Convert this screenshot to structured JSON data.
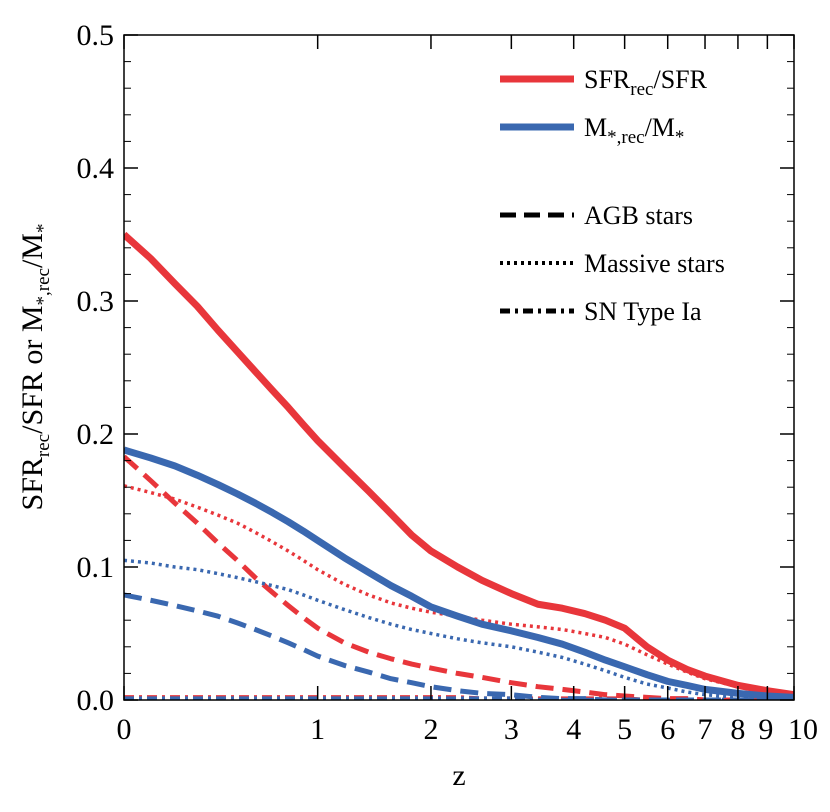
{
  "chart_data": {
    "type": "line",
    "xlabel": "z",
    "ylabel_parts": {
      "a": "SFR",
      "b": "rec",
      "c": "/SFR or M",
      "d": "*,rec",
      "e": "/M",
      "f": "*"
    },
    "xscale": "log(1+z)",
    "xlim": [
      0,
      10
    ],
    "ylim": [
      0,
      0.5
    ],
    "x_ticks": [
      0,
      1,
      2,
      3,
      4,
      5,
      6,
      7,
      8,
      9,
      10
    ],
    "x_tick_labels": [
      "0",
      "1",
      "2",
      "3",
      "4",
      "5",
      "6",
      "7",
      "8",
      "9",
      "10"
    ],
    "y_ticks": [
      0,
      0.1,
      0.2,
      0.3,
      0.4,
      0.5
    ],
    "y_tick_labels": [
      "0.0",
      "0.1",
      "0.2",
      "0.3",
      "0.4",
      "0.5"
    ],
    "colors": {
      "sfr": "#e8363b",
      "mstar": "#3a68b0"
    },
    "legend": {
      "placement": "top-right",
      "sfr": {
        "main": "SFR",
        "sub": "rec",
        "tail": "/SFR"
      },
      "mstar": {
        "m1": "M",
        "s1": "*,rec",
        "m2": "/M",
        "s2": "*"
      },
      "agb": "AGB stars",
      "massive": "Massive stars",
      "sn": "SN Type Ia"
    },
    "x": [
      0,
      0.1,
      0.2,
      0.3,
      0.4,
      0.5,
      0.6,
      0.7,
      0.8,
      0.9,
      1.0,
      1.2,
      1.4,
      1.6,
      1.8,
      2.0,
      2.3,
      2.6,
      3.0,
      3.4,
      3.8,
      4.2,
      4.6,
      5.0,
      5.5,
      6.0,
      6.5,
      7.0,
      8.0,
      9.0,
      10.0
    ],
    "series": [
      {
        "name": "SFR_rec/SFR total",
        "group": "sfr",
        "style": "solid",
        "values": [
          0.35,
          0.332,
          0.313,
          0.296,
          0.278,
          0.262,
          0.247,
          0.233,
          0.22,
          0.207,
          0.195,
          0.175,
          0.157,
          0.14,
          0.124,
          0.112,
          0.1,
          0.09,
          0.08,
          0.072,
          0.069,
          0.065,
          0.06,
          0.054,
          0.04,
          0.03,
          0.023,
          0.018,
          0.011,
          0.007,
          0.004
        ]
      },
      {
        "name": "M*,rec/M* total",
        "group": "mstar",
        "style": "solid",
        "values": [
          0.188,
          0.182,
          0.176,
          0.169,
          0.162,
          0.155,
          0.148,
          0.141,
          0.134,
          0.127,
          0.12,
          0.107,
          0.096,
          0.086,
          0.078,
          0.07,
          0.063,
          0.057,
          0.052,
          0.047,
          0.042,
          0.036,
          0.03,
          0.025,
          0.019,
          0.014,
          0.011,
          0.008,
          0.005,
          0.003,
          0.002
        ]
      },
      {
        "name": "SFR_rec/SFR AGB stars",
        "group": "sfr",
        "style": "dash",
        "values": [
          0.183,
          0.165,
          0.148,
          0.133,
          0.118,
          0.105,
          0.092,
          0.081,
          0.071,
          0.062,
          0.054,
          0.043,
          0.036,
          0.031,
          0.027,
          0.024,
          0.02,
          0.017,
          0.013,
          0.01,
          0.008,
          0.006,
          0.004,
          0.003,
          0.002,
          0.001,
          0.001,
          0.0,
          0.0,
          0.0,
          0.0
        ]
      },
      {
        "name": "SFR_rec/SFR Massive stars",
        "group": "sfr",
        "style": "dot",
        "values": [
          0.161,
          0.156,
          0.151,
          0.145,
          0.139,
          0.133,
          0.126,
          0.119,
          0.112,
          0.105,
          0.098,
          0.087,
          0.079,
          0.073,
          0.069,
          0.066,
          0.063,
          0.06,
          0.057,
          0.055,
          0.053,
          0.05,
          0.047,
          0.042,
          0.034,
          0.027,
          0.021,
          0.016,
          0.01,
          0.006,
          0.003
        ]
      },
      {
        "name": "M*,rec/M* AGB stars",
        "group": "mstar",
        "style": "dash",
        "values": [
          0.079,
          0.075,
          0.071,
          0.067,
          0.063,
          0.058,
          0.053,
          0.048,
          0.043,
          0.038,
          0.033,
          0.026,
          0.021,
          0.016,
          0.013,
          0.01,
          0.007,
          0.005,
          0.004,
          0.002,
          0.001,
          0.001,
          0.0,
          0.0,
          0.0,
          0.0,
          0.0,
          0.0,
          0.0,
          0.0,
          0.0
        ]
      },
      {
        "name": "M*,rec/M* Massive stars",
        "group": "mstar",
        "style": "dot",
        "values": [
          0.105,
          0.103,
          0.1,
          0.098,
          0.095,
          0.092,
          0.089,
          0.086,
          0.083,
          0.079,
          0.075,
          0.068,
          0.062,
          0.057,
          0.053,
          0.05,
          0.046,
          0.043,
          0.04,
          0.036,
          0.032,
          0.027,
          0.022,
          0.017,
          0.012,
          0.009,
          0.006,
          0.004,
          0.002,
          0.001,
          0.001
        ]
      },
      {
        "name": "SFR_rec/SFR SN Type Ia",
        "group": "sfr",
        "style": "dashdot",
        "values": [
          0.002,
          0.002,
          0.002,
          0.002,
          0.002,
          0.002,
          0.002,
          0.002,
          0.002,
          0.002,
          0.002,
          0.002,
          0.002,
          0.002,
          0.002,
          0.002,
          0.002,
          0.001,
          0.001,
          0.001,
          0.001,
          0.001,
          0.001,
          0.001,
          0.0,
          0.0,
          0.0,
          0.0,
          0.0,
          0.0,
          0.0
        ]
      },
      {
        "name": "M*,rec/M* SN Type Ia",
        "group": "mstar",
        "style": "dashdot",
        "values": [
          0.001,
          0.001,
          0.001,
          0.001,
          0.001,
          0.001,
          0.001,
          0.001,
          0.001,
          0.001,
          0.001,
          0.001,
          0.001,
          0.001,
          0.001,
          0.001,
          0.001,
          0.001,
          0.001,
          0.0,
          0.0,
          0.0,
          0.0,
          0.0,
          0.0,
          0.0,
          0.0,
          0.0,
          0.0,
          0.0,
          0.0
        ]
      }
    ]
  }
}
